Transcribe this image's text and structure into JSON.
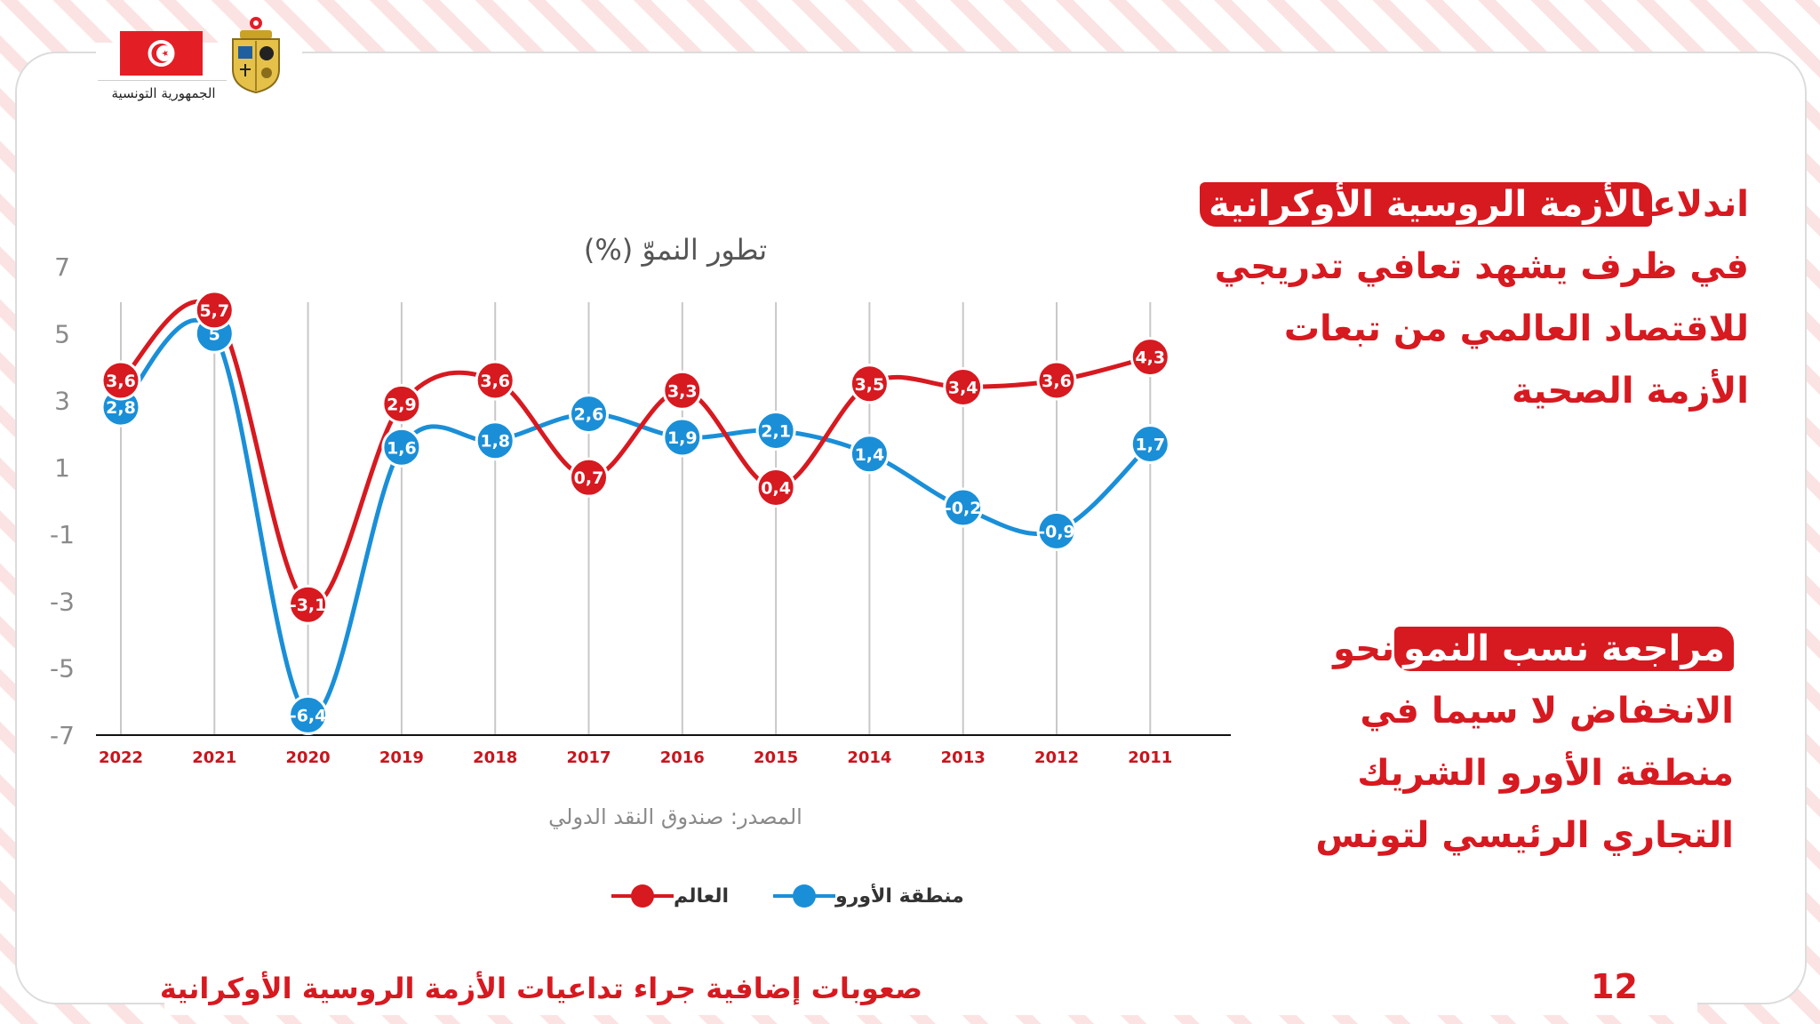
{
  "header": {
    "republic_label": "الجمهورية التونسية"
  },
  "colors": {
    "world": "#d71920",
    "euro": "#1a8fd8",
    "accent": "#d71920"
  },
  "chart_data": {
    "type": "line",
    "title": "تطور النموّ (%)",
    "categories": [
      "2022",
      "2021",
      "2020",
      "2019",
      "2018",
      "2017",
      "2016",
      "2015",
      "2014",
      "2013",
      "2012",
      "2011"
    ],
    "series": [
      {
        "name": "العالم",
        "values": [
          3.6,
          5.7,
          -3.1,
          2.9,
          3.6,
          0.7,
          3.3,
          0.4,
          3.5,
          3.4,
          3.6,
          4.3
        ],
        "labels": [
          "3,6",
          "5,7",
          "-3,1",
          "2,9",
          "3,6",
          "0,7",
          "3,3",
          "0,4",
          "3,5",
          "3,4",
          "3,6",
          "4,3"
        ]
      },
      {
        "name": "منطقة الأورو",
        "values": [
          2.8,
          5,
          -6.4,
          1.6,
          1.8,
          2.6,
          1.9,
          2.1,
          1.4,
          -0.2,
          -0.9,
          1.7
        ],
        "labels": [
          "2,8",
          "5",
          "-6,4",
          "1,6",
          "1,8",
          "2,6",
          "1,9",
          "2,1",
          "1,4",
          "-0,2",
          "-0,9",
          "1,7"
        ]
      }
    ],
    "y_ticks": [
      7,
      5,
      3,
      1,
      -1,
      -3,
      -5,
      -7
    ],
    "ylim": [
      -7,
      7
    ],
    "grid": "vertical",
    "legend_position": "bottom",
    "source": "المصدر: صندوق النقد الدولي"
  },
  "text_right_top": {
    "prefix": "اندلاع",
    "highlight": "الأزمة الروسية الأوكرانية",
    "lines": [
      "في ظرف يشهد تعافي تدريجي",
      "للاقتصاد العالمي من تبعات",
      "الأزمة الصحية"
    ]
  },
  "text_right_bottom": {
    "highlight": "مراجعة نسب النمو",
    "suffix": "نحو",
    "lines": [
      "الانخفاض لا سيما في",
      "منطقة الأورو الشريك",
      "التجاري الرئيسي لتونس"
    ]
  },
  "footer": {
    "title": "صعوبات إضافية جراء تداعيات  الأزمة الروسية الأوكرانية",
    "page_number": "12"
  }
}
